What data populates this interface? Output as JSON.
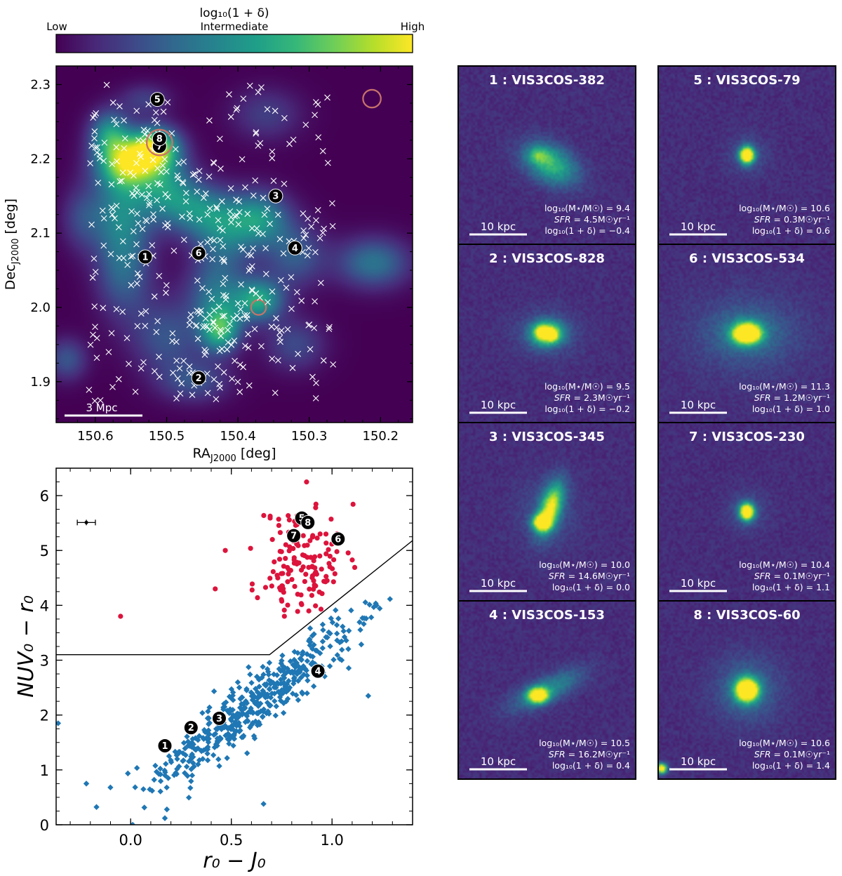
{
  "colors": {
    "viridis": [
      "#440154",
      "#482878",
      "#3e4989",
      "#31688e",
      "#26828e",
      "#1f9e89",
      "#35b779",
      "#6ece58",
      "#b5de2b",
      "#fde725"
    ],
    "map_background": "#440154",
    "cutout_background": "#3b2f7a",
    "red_points": "#dc143c",
    "blue_points": "#1f77b4",
    "star_marker": "#ffffff",
    "circle": "#c8736a",
    "label_bg": "#000000",
    "label_text": "#ffffff"
  },
  "colorbar": {
    "title": "log₁₀(1 + δ)",
    "low": "Low",
    "mid": "Intermediate",
    "high": "High"
  },
  "chart_data": [
    {
      "id": "density-map",
      "type": "heatmap",
      "xlabel": "RA",
      "xlabel_sub": "J2000",
      "xlabel_unit": " [deg]",
      "ylabel": "Dec",
      "ylabel_sub": "J2000",
      "ylabel_unit": " [deg]",
      "xlim": [
        150.655,
        150.155
      ],
      "ylim": [
        1.845,
        2.325
      ],
      "xticks": [
        150.6,
        150.5,
        150.4,
        150.3,
        150.2
      ],
      "xtick_labels": [
        "150.6",
        "150.5",
        "150.4",
        "150.3",
        "150.2"
      ],
      "yticks": [
        1.9,
        2.0,
        2.1,
        2.2,
        2.3
      ],
      "ytick_labels": [
        "1.9",
        "2.0",
        "2.1",
        "2.2",
        "2.3"
      ],
      "scalebar_label": "3 Mpc",
      "density_blobs": [
        {
          "ra": 150.555,
          "dec": 2.195,
          "sr": 0.03,
          "sd": 0.024,
          "a": 1.0
        },
        {
          "ra": 150.515,
          "dec": 2.215,
          "sr": 0.024,
          "sd": 0.02,
          "a": 0.95
        },
        {
          "ra": 150.58,
          "dec": 2.235,
          "sr": 0.02,
          "sd": 0.022,
          "a": 0.6
        },
        {
          "ra": 150.5,
          "dec": 2.16,
          "sr": 0.03,
          "sd": 0.03,
          "a": 0.55
        },
        {
          "ra": 150.565,
          "dec": 2.13,
          "sr": 0.03,
          "sd": 0.04,
          "a": 0.5
        },
        {
          "ra": 150.56,
          "dec": 2.05,
          "sr": 0.028,
          "sd": 0.045,
          "a": 0.42
        },
        {
          "ra": 150.45,
          "dec": 2.13,
          "sr": 0.035,
          "sd": 0.025,
          "a": 0.52
        },
        {
          "ra": 150.37,
          "dec": 2.12,
          "sr": 0.03,
          "sd": 0.026,
          "a": 0.62
        },
        {
          "ra": 150.42,
          "dec": 2.09,
          "sr": 0.03,
          "sd": 0.03,
          "a": 0.4
        },
        {
          "ra": 150.32,
          "dec": 2.07,
          "sr": 0.03,
          "sd": 0.03,
          "a": 0.38
        },
        {
          "ra": 150.425,
          "dec": 1.97,
          "sr": 0.02,
          "sd": 0.022,
          "a": 0.8
        },
        {
          "ra": 150.37,
          "dec": 2.01,
          "sr": 0.024,
          "sd": 0.02,
          "a": 0.72
        },
        {
          "ra": 150.43,
          "dec": 2.02,
          "sr": 0.03,
          "sd": 0.03,
          "a": 0.45
        },
        {
          "ra": 150.21,
          "dec": 2.06,
          "sr": 0.036,
          "sd": 0.024,
          "a": 0.5
        },
        {
          "ra": 150.5,
          "dec": 1.96,
          "sr": 0.035,
          "sd": 0.035,
          "a": 0.35
        },
        {
          "ra": 150.46,
          "dec": 1.9,
          "sr": 0.035,
          "sd": 0.02,
          "a": 0.32
        },
        {
          "ra": 150.64,
          "dec": 1.93,
          "sr": 0.02,
          "sd": 0.02,
          "a": 0.35
        },
        {
          "ra": 150.32,
          "dec": 1.95,
          "sr": 0.03,
          "sd": 0.025,
          "a": 0.3
        },
        {
          "ra": 150.53,
          "dec": 2.28,
          "sr": 0.025,
          "sd": 0.015,
          "a": 0.25
        },
        {
          "ra": 150.36,
          "dec": 2.26,
          "sr": 0.035,
          "sd": 0.025,
          "a": 0.25
        },
        {
          "ra": 150.62,
          "dec": 2.12,
          "sr": 0.02,
          "sd": 0.03,
          "a": 0.25
        }
      ],
      "numbered_galaxies": [
        {
          "label": "1",
          "ra": 150.53,
          "dec": 2.068
        },
        {
          "label": "2",
          "ra": 150.455,
          "dec": 1.905
        },
        {
          "label": "3",
          "ra": 150.347,
          "dec": 2.15
        },
        {
          "label": "4",
          "ra": 150.32,
          "dec": 2.08
        },
        {
          "label": "5",
          "ra": 150.513,
          "dec": 2.28
        },
        {
          "label": "6",
          "ra": 150.455,
          "dec": 2.073
        },
        {
          "label": "7",
          "ra": 150.51,
          "dec": 2.217
        },
        {
          "label": "8",
          "ra": 150.51,
          "dec": 2.227
        }
      ],
      "circles": [
        {
          "ra": 150.212,
          "dec": 2.281,
          "r_deg": 0.0125
        },
        {
          "ra": 150.371,
          "dec": 2.0,
          "r_deg": 0.0105
        },
        {
          "ra": 150.51,
          "dec": 2.222,
          "r_deg": 0.018
        }
      ],
      "scatter": {
        "name": "cosmos-sources",
        "seed": 7,
        "count": 420,
        "ra_range": [
          150.61,
          150.265
        ],
        "dec_range": [
          1.87,
          2.3
        ]
      }
    },
    {
      "id": "color-color",
      "type": "scatter",
      "xlabel": "r₀ − J₀",
      "ylabel": "NUV₀ − r₀",
      "xlim": [
        -0.37,
        1.4
      ],
      "ylim": [
        0,
        6.5
      ],
      "xticks": [
        0.0,
        0.5,
        1.0
      ],
      "xtick_labels": [
        "0.0",
        "0.5",
        "1.0"
      ],
      "yticks": [
        0,
        1,
        2,
        3,
        4,
        5,
        6
      ],
      "ytick_labels": [
        "0",
        "1",
        "2",
        "3",
        "4",
        "5",
        "6"
      ],
      "boundary_x": [
        -0.37,
        0.69,
        1.4
      ],
      "boundary_y": [
        3.1,
        3.1,
        5.18
      ],
      "error_bar": {
        "x": -0.22,
        "y": 5.51,
        "xerr": 0.045,
        "yerr": 0.05
      },
      "outliers_red": [
        {
          "x": -0.05,
          "y": 3.8
        },
        {
          "x": 0.47,
          "y": 5.0
        },
        {
          "x": 0.42,
          "y": 4.3
        }
      ],
      "outliers_blue": [
        {
          "x": -0.36,
          "y": 1.85
        },
        {
          "x": -0.22,
          "y": 0.75
        },
        {
          "x": 0.17,
          "y": 0.12
        },
        {
          "x": 0.18,
          "y": 0.28
        },
        {
          "x": 0.66,
          "y": 0.38
        },
        {
          "x": 1.18,
          "y": 2.35
        },
        {
          "x": 0.01,
          "y": 0.0
        }
      ],
      "red_seed": 11,
      "red_count": 140,
      "blue_seed": 3,
      "blue_count": 470,
      "labeled_points": [
        {
          "label": "1",
          "x": 0.17,
          "y": 1.44
        },
        {
          "label": "2",
          "x": 0.3,
          "y": 1.77
        },
        {
          "label": "3",
          "x": 0.44,
          "y": 1.94
        },
        {
          "label": "4",
          "x": 0.93,
          "y": 2.8
        },
        {
          "label": "5",
          "x": 0.85,
          "y": 5.59
        },
        {
          "label": "6",
          "x": 1.03,
          "y": 5.21
        },
        {
          "label": "7",
          "x": 0.81,
          "y": 5.27
        },
        {
          "label": "8",
          "x": 0.88,
          "y": 5.51
        }
      ]
    }
  ],
  "cutouts": [
    {
      "num": "1",
      "name": "VIS3COS-382",
      "title": "1 : VIS3COS-382",
      "mass_prefix": "log₁₀(M⋆/M☉) = ",
      "mass": "9.4",
      "sfr_prefix": "SFR = ",
      "sfr": "4.5M☉yr⁻¹",
      "delta_prefix": "log₁₀(1 + δ) = ",
      "delta": "−0.4",
      "scale": "10 kpc",
      "shape": "diffuse"
    },
    {
      "num": "2",
      "name": "VIS3COS-828",
      "title": "2 : VIS3COS-828",
      "mass_prefix": "log₁₀(M⋆/M☉) = ",
      "mass": "9.5",
      "sfr_prefix": "SFR = ",
      "sfr": "2.3M☉yr⁻¹",
      "delta_prefix": "log₁₀(1 + δ) = ",
      "delta": "−0.2",
      "scale": "10 kpc",
      "shape": "clumpy"
    },
    {
      "num": "3",
      "name": "VIS3COS-345",
      "title": "3 : VIS3COS-345",
      "mass_prefix": "log₁₀(M⋆/M☉) = ",
      "mass": "10.0",
      "sfr_prefix": "SFR = ",
      "sfr": "14.6M☉yr⁻¹",
      "delta_prefix": "log₁₀(1 + δ) = ",
      "delta": "0.0",
      "scale": "10 kpc",
      "shape": "irregular"
    },
    {
      "num": "4",
      "name": "VIS3COS-153",
      "title": "4 : VIS3COS-153",
      "mass_prefix": "log₁₀(M⋆/M☉) = ",
      "mass": "10.5",
      "sfr_prefix": "SFR = ",
      "sfr": "16.2M☉yr⁻¹",
      "delta_prefix": "log₁₀(1 + δ) = ",
      "delta": "0.4",
      "scale": "10 kpc",
      "shape": "disk"
    },
    {
      "num": "5",
      "name": "VIS3COS-79",
      "title": "5 : VIS3COS-79",
      "mass_prefix": "log₁₀(M⋆/M☉) = ",
      "mass": "10.6",
      "sfr_prefix": "SFR = ",
      "sfr": "0.3M☉yr⁻¹",
      "delta_prefix": "log₁₀(1 + δ) = ",
      "delta": "0.6",
      "scale": "10 kpc",
      "shape": "compact"
    },
    {
      "num": "6",
      "name": "VIS3COS-534",
      "title": "6 : VIS3COS-534",
      "mass_prefix": "log₁₀(M⋆/M☉) = ",
      "mass": "11.3",
      "sfr_prefix": "SFR = ",
      "sfr": "1.2M☉yr⁻¹",
      "delta_prefix": "log₁₀(1 + δ) = ",
      "delta": "1.0",
      "scale": "10 kpc",
      "shape": "elliptical"
    },
    {
      "num": "7",
      "name": "VIS3COS-230",
      "title": "7 : VIS3COS-230",
      "mass_prefix": "log₁₀(M⋆/M☉) = ",
      "mass": "10.4",
      "sfr_prefix": "SFR = ",
      "sfr": "0.1M☉yr⁻¹",
      "delta_prefix": "log₁₀(1 + δ) = ",
      "delta": "1.1",
      "scale": "10 kpc",
      "shape": "compact"
    },
    {
      "num": "8",
      "name": "VIS3COS-60",
      "title": "8 : VIS3COS-60",
      "mass_prefix": "log₁₀(M⋆/M☉) = ",
      "mass": "10.6",
      "sfr_prefix": "SFR = ",
      "sfr": "0.1M☉yr⁻¹",
      "delta_prefix": "log₁₀(1 + δ) = ",
      "delta": "1.4",
      "scale": "10 kpc",
      "shape": "round"
    }
  ]
}
